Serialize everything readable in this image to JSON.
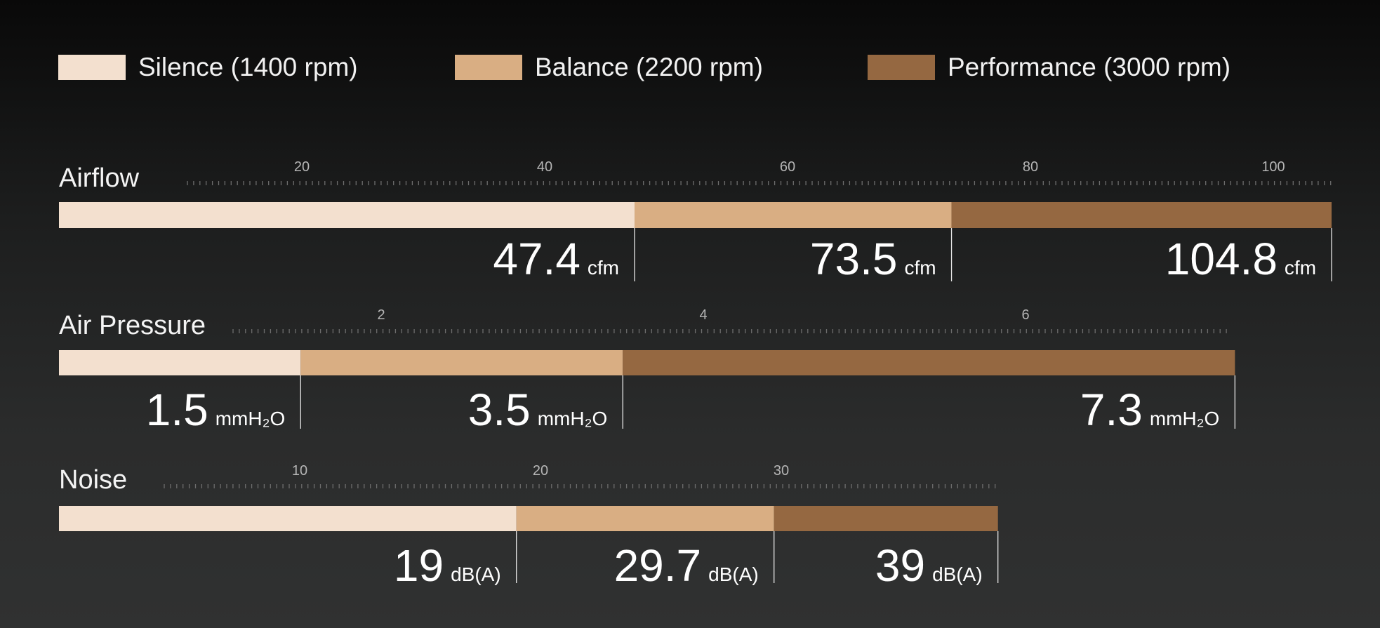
{
  "legend": [
    {
      "label": "Silence (1400 rpm)",
      "color": "#f3e0cf"
    },
    {
      "label": "Balance (2200 rpm)",
      "color": "#d9ae83"
    },
    {
      "label": "Performance (3000 rpm)",
      "color": "#956841"
    }
  ],
  "chart_data": [
    {
      "type": "bar",
      "title": "Airflow",
      "unit": "cfm",
      "ticks": [
        20,
        40,
        60,
        80,
        100
      ],
      "series": [
        {
          "name": "Silence (1400 rpm)",
          "value": 47.4
        },
        {
          "name": "Balance (2200 rpm)",
          "value": 73.5
        },
        {
          "name": "Performance (3000 rpm)",
          "value": 104.8
        }
      ]
    },
    {
      "type": "bar",
      "title": "Air Pressure",
      "unit": "mmH₂O",
      "ticks": [
        2,
        4,
        6
      ],
      "series": [
        {
          "name": "Silence (1400 rpm)",
          "value": 1.5
        },
        {
          "name": "Balance (2200 rpm)",
          "value": 3.5
        },
        {
          "name": "Performance (3000 rpm)",
          "value": 7.3
        }
      ]
    },
    {
      "type": "bar",
      "title": "Noise",
      "unit": "dB(A)",
      "ticks": [
        10,
        20,
        30
      ],
      "series": [
        {
          "name": "Silence (1400 rpm)",
          "value": 19
        },
        {
          "name": "Balance (2200 rpm)",
          "value": 29.7
        },
        {
          "name": "Performance (3000 rpm)",
          "value": 39
        }
      ]
    }
  ]
}
